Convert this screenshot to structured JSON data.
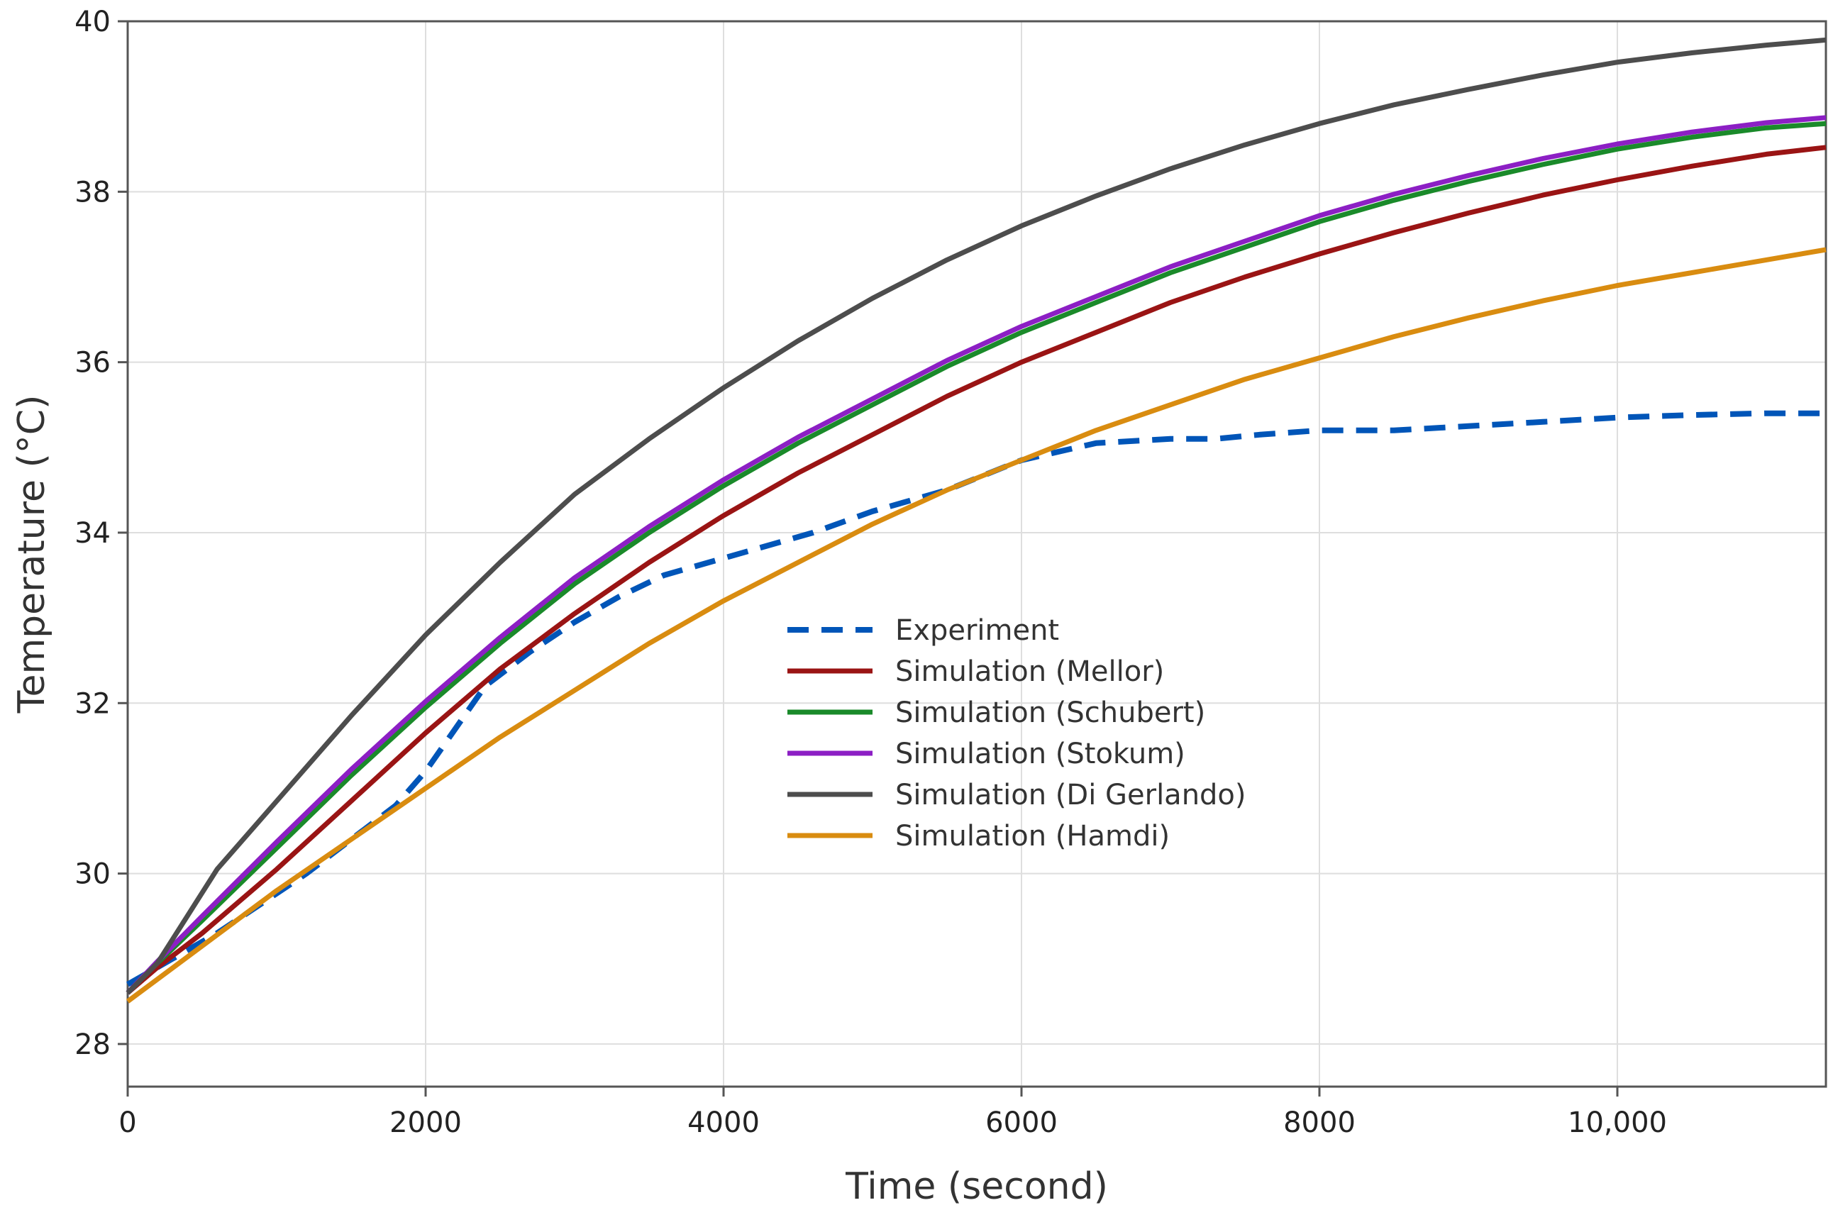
{
  "chart_data": {
    "type": "line",
    "title": "",
    "xlabel": "Time (second)",
    "ylabel": "Temperature (°C)",
    "xlim": [
      0,
      11400
    ],
    "ylim": [
      27.5,
      40
    ],
    "grid": true,
    "legend_position": "center",
    "x_ticks": [
      {
        "value": 0,
        "label": "0"
      },
      {
        "value": 2000,
        "label": "2000"
      },
      {
        "value": 4000,
        "label": "4000"
      },
      {
        "value": 6000,
        "label": "6000"
      },
      {
        "value": 8000,
        "label": "8000"
      },
      {
        "value": 10000,
        "label": "10,000"
      }
    ],
    "y_ticks": [
      {
        "value": 28,
        "label": "28"
      },
      {
        "value": 30,
        "label": "30"
      },
      {
        "value": 32,
        "label": "32"
      },
      {
        "value": 34,
        "label": "34"
      },
      {
        "value": 36,
        "label": "36"
      },
      {
        "value": 38,
        "label": "38"
      },
      {
        "value": 40,
        "label": "40"
      }
    ],
    "series": [
      {
        "name": "Experiment",
        "color": "#0055b8",
        "dashed": true,
        "x": [
          0,
          300,
          600,
          900,
          1200,
          1500,
          1800,
          2000,
          2200,
          2400,
          2700,
          3000,
          3300,
          3600,
          3800,
          4000,
          4300,
          4600,
          5000,
          5500,
          6000,
          6500,
          7000,
          7300,
          7600,
          8000,
          8500,
          9000,
          9500,
          10000,
          10500,
          11000,
          11400
        ],
        "y": [
          28.7,
          29.0,
          29.3,
          29.65,
          30.0,
          30.4,
          30.8,
          31.2,
          31.7,
          32.2,
          32.6,
          32.95,
          33.25,
          33.5,
          33.6,
          33.7,
          33.85,
          34.0,
          34.25,
          34.5,
          34.85,
          35.05,
          35.1,
          35.1,
          35.15,
          35.2,
          35.2,
          35.25,
          35.3,
          35.35,
          35.38,
          35.4,
          35.4
        ]
      },
      {
        "name": "Simulation (Mellor)",
        "color": "#9a1414",
        "dashed": false,
        "x": [
          0,
          200,
          500,
          1000,
          1500,
          2000,
          2500,
          3000,
          3500,
          4000,
          4500,
          5000,
          5500,
          6000,
          6500,
          7000,
          7500,
          8000,
          8500,
          9000,
          9500,
          10000,
          10500,
          11000,
          11400
        ],
        "y": [
          28.6,
          28.9,
          29.3,
          30.05,
          30.85,
          31.65,
          32.4,
          33.05,
          33.65,
          34.2,
          34.7,
          35.15,
          35.6,
          36.0,
          36.35,
          36.7,
          37.0,
          37.27,
          37.52,
          37.75,
          37.96,
          38.14,
          38.3,
          38.44,
          38.52
        ]
      },
      {
        "name": "Simulation (Schubert)",
        "color": "#1a8a2a",
        "dashed": false,
        "x": [
          0,
          200,
          500,
          1000,
          1500,
          2000,
          2500,
          3000,
          3500,
          4000,
          4500,
          5000,
          5500,
          6000,
          6500,
          7000,
          7500,
          8000,
          8500,
          9000,
          9500,
          10000,
          10500,
          11000,
          11400
        ],
        "y": [
          28.6,
          28.95,
          29.45,
          30.3,
          31.15,
          31.95,
          32.7,
          33.4,
          34.0,
          34.55,
          35.05,
          35.5,
          35.95,
          36.35,
          36.7,
          37.05,
          37.35,
          37.65,
          37.9,
          38.12,
          38.32,
          38.5,
          38.64,
          38.75,
          38.8
        ]
      },
      {
        "name": "Simulation (Stokum)",
        "color": "#8c1fc4",
        "dashed": false,
        "x": [
          0,
          200,
          500,
          1000,
          1500,
          2000,
          2500,
          3000,
          3500,
          4000,
          4500,
          5000,
          5500,
          6000,
          6500,
          7000,
          7500,
          8000,
          8500,
          9000,
          9500,
          10000,
          10500,
          11000,
          11400
        ],
        "y": [
          28.6,
          28.97,
          29.5,
          30.37,
          31.22,
          32.02,
          32.77,
          33.47,
          34.07,
          34.62,
          35.12,
          35.57,
          36.02,
          36.42,
          36.77,
          37.12,
          37.42,
          37.72,
          37.97,
          38.19,
          38.39,
          38.56,
          38.7,
          38.81,
          38.87
        ]
      },
      {
        "name": "Simulation (Di Gerlando)",
        "color": "#4d4d4d",
        "dashed": false,
        "x": [
          0,
          200,
          400,
          600,
          1000,
          1500,
          2000,
          2500,
          3000,
          3500,
          4000,
          4500,
          5000,
          5500,
          6000,
          6500,
          7000,
          7500,
          8000,
          8500,
          9000,
          9500,
          10000,
          10500,
          11000,
          11400
        ],
        "y": [
          28.6,
          28.95,
          29.5,
          30.05,
          30.85,
          31.85,
          32.8,
          33.65,
          34.45,
          35.1,
          35.7,
          36.25,
          36.75,
          37.2,
          37.6,
          37.95,
          38.27,
          38.55,
          38.8,
          39.02,
          39.2,
          39.37,
          39.52,
          39.63,
          39.72,
          39.78
        ]
      },
      {
        "name": "Simulation (Hamdi)",
        "color": "#d98c10",
        "dashed": false,
        "x": [
          0,
          500,
          1000,
          1500,
          2000,
          2500,
          3000,
          3500,
          4000,
          4500,
          5000,
          5500,
          6000,
          6500,
          7000,
          7500,
          8000,
          8500,
          9000,
          9500,
          10000,
          10500,
          11000,
          11400
        ],
        "y": [
          28.5,
          29.15,
          29.8,
          30.4,
          31.0,
          31.6,
          32.15,
          32.7,
          33.2,
          33.65,
          34.1,
          34.5,
          34.85,
          35.2,
          35.5,
          35.8,
          36.05,
          36.3,
          36.52,
          36.72,
          36.9,
          37.05,
          37.2,
          37.32
        ]
      }
    ]
  }
}
